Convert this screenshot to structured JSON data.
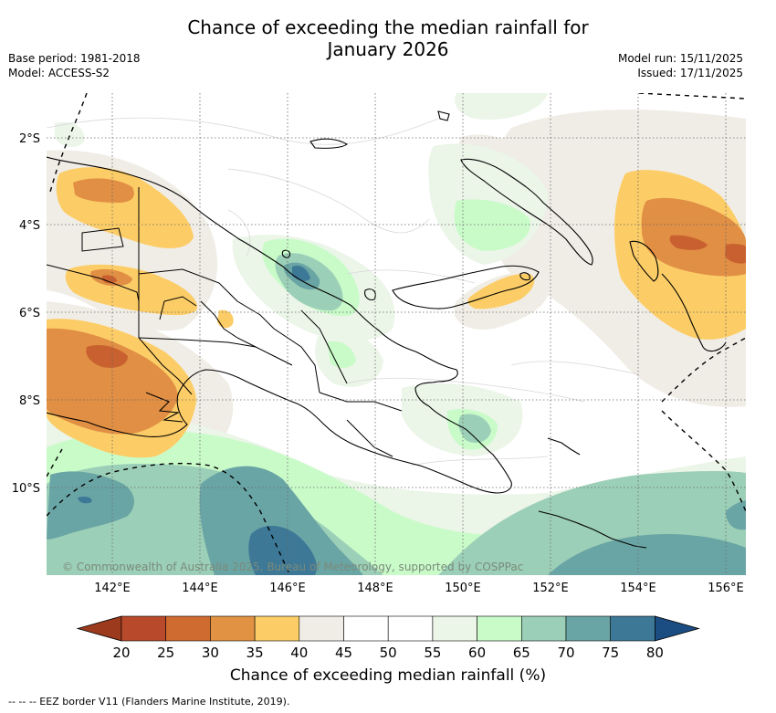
{
  "title": "Chance of exceeding the median rainfall for",
  "title_line2": "January 2026",
  "base_period": "Base period: 1981-2018",
  "model": "Model: ACCESS-S2",
  "model_run": "Model run: 15/11/2025",
  "issued": "Issued: 17/11/2025",
  "copyright": "© Commonwealth of Australia 2025, Bureau of Meteorology, supported by COSPPac",
  "colorbar_label": "Chance of exceeding median rainfall (%)",
  "eez_note": "--  --  -- EEZ border V11 (Flanders Marine Institute, 2019).",
  "lon_ticks": [
    "142°E",
    "144°E",
    "146°E",
    "148°E",
    "150°E",
    "152°E",
    "154°E",
    "156°E"
  ],
  "lat_ticks": [
    "2°S",
    "4°S",
    "6°S",
    "8°S",
    "10°S"
  ],
  "colorbar": {
    "ticks": [
      "20",
      "25",
      "30",
      "35",
      "40",
      "45",
      "50",
      "55",
      "60",
      "65",
      "70",
      "75",
      "80"
    ],
    "colors": [
      "#9b3a1c",
      "#b8492a",
      "#cf6a30",
      "#e19343",
      "#fccd67",
      "#f0ede6",
      "#ffffff",
      "#ffffff",
      "#ebf5e8",
      "#c9fbc9",
      "#9ccfb7",
      "#6aa5a5",
      "#3d7897",
      "#1b4d83"
    ]
  },
  "colors": {
    "c25": "#c8612f",
    "c30": "#e18f44",
    "c35": "#fccd67",
    "c40": "#f0ede6",
    "c55": "#ebf5e8",
    "c60": "#c9fbc9",
    "c65": "#9ccfb7",
    "c70": "#6aa5a5",
    "c75": "#3d7897"
  }
}
